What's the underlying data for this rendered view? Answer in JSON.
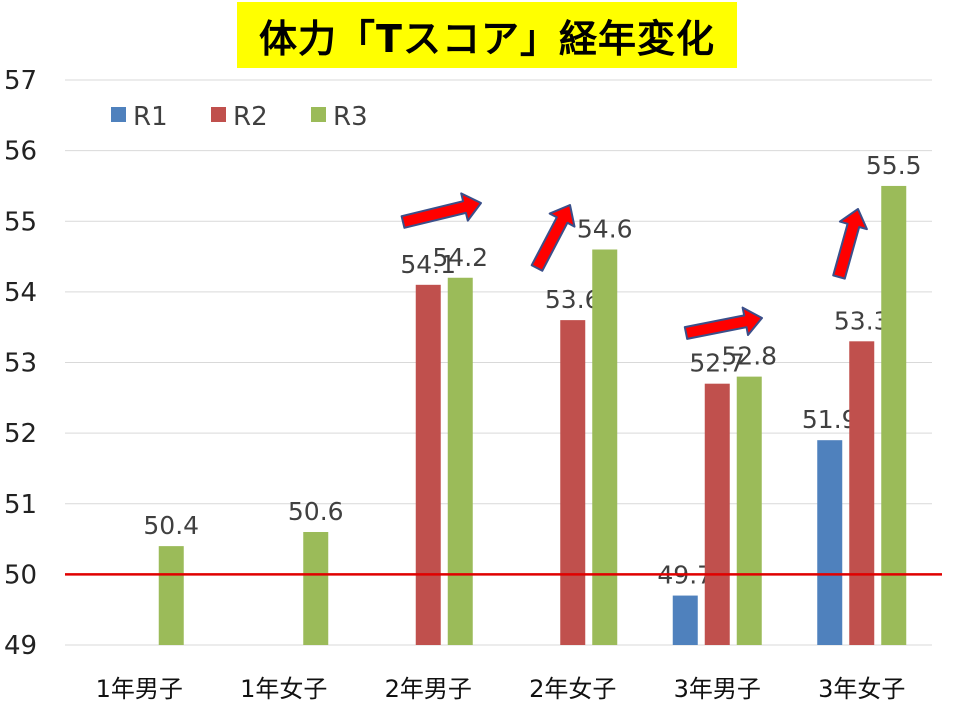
{
  "title": "体力「Tスコア」経年変化",
  "chart_data": {
    "type": "bar",
    "categories": [
      "1年男子",
      "1年女子",
      "2年男子",
      "2年女子",
      "3年男子",
      "3年女子"
    ],
    "series": [
      {
        "name": "R1",
        "color": "#4f81bd",
        "values": [
          null,
          null,
          null,
          null,
          49.7,
          51.9
        ]
      },
      {
        "name": "R2",
        "color": "#c0504d",
        "values": [
          null,
          null,
          54.1,
          53.6,
          52.7,
          53.3
        ]
      },
      {
        "name": "R3",
        "color": "#9bbb59",
        "values": [
          50.4,
          50.6,
          54.2,
          54.6,
          52.8,
          55.5
        ]
      }
    ],
    "ylim": [
      49,
      57
    ],
    "yticks": [
      49,
      50,
      51,
      52,
      53,
      54,
      55,
      56,
      57
    ],
    "reference_line": {
      "value": 50,
      "color": "#e00000"
    },
    "grid": true,
    "legend_position": "top-left",
    "annotations": [
      {
        "type": "arrow",
        "color": "#ff0000",
        "near": "2年男子"
      },
      {
        "type": "arrow",
        "color": "#ff0000",
        "near": "2年女子"
      },
      {
        "type": "arrow",
        "color": "#ff0000",
        "near": "3年男子"
      },
      {
        "type": "arrow",
        "color": "#ff0000",
        "near": "3年女子"
      }
    ]
  }
}
